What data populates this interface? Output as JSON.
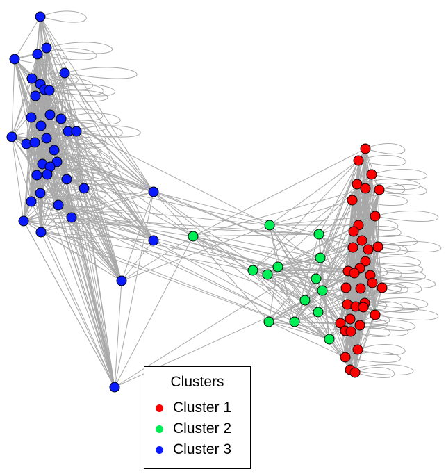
{
  "legend": {
    "title": "Clusters",
    "items": [
      {
        "label": "Cluster 1",
        "color": "#ff0000"
      },
      {
        "label": "Cluster 2",
        "color": "#00ee55"
      },
      {
        "label": "Cluster 3",
        "color": "#0a1aff"
      }
    ]
  }
}
